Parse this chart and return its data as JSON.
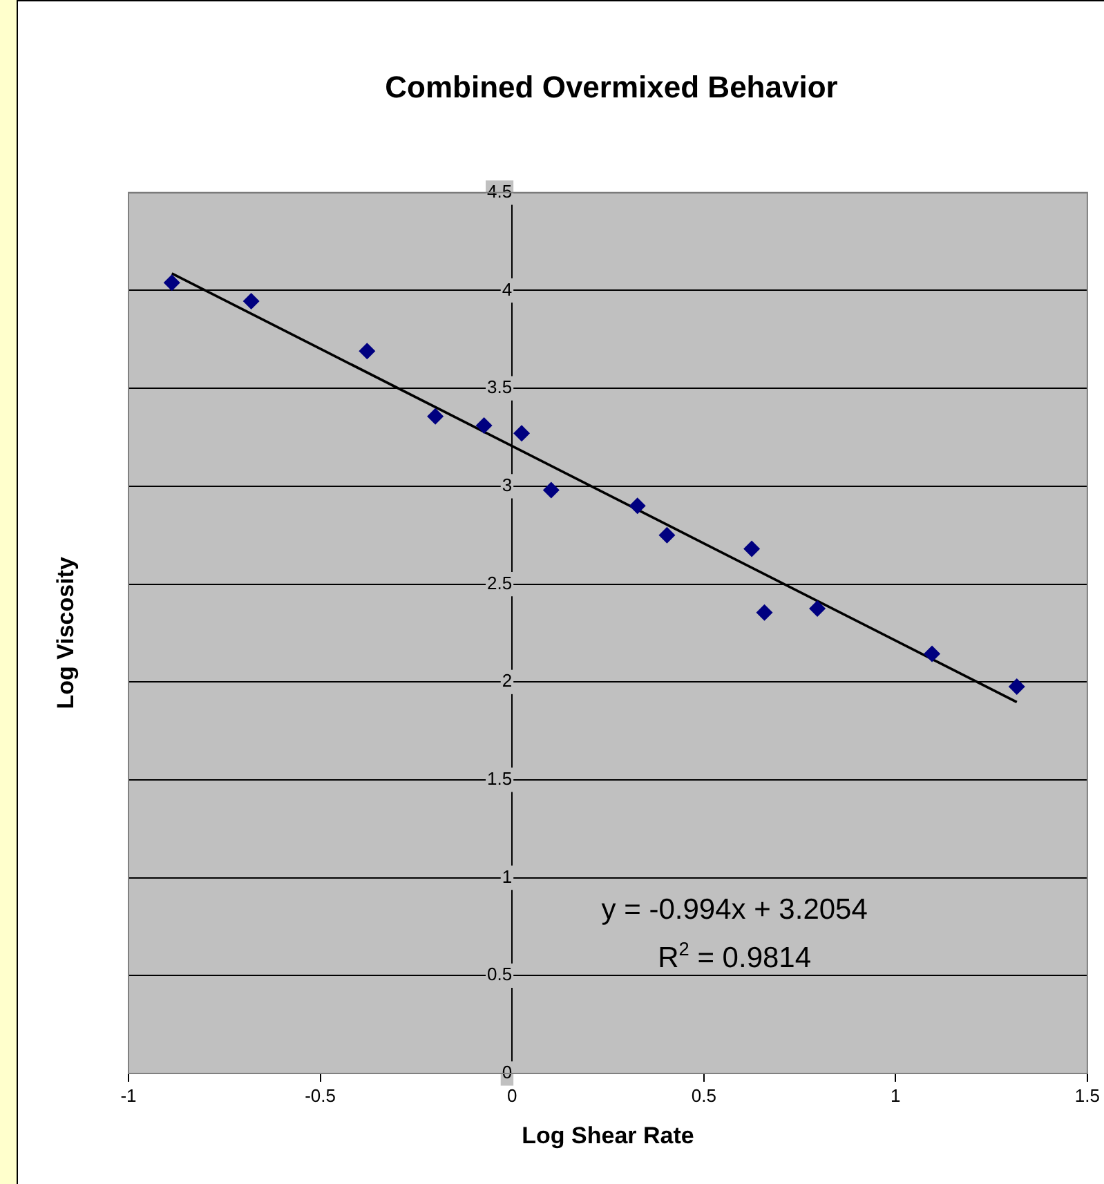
{
  "chart_data": {
    "type": "scatter",
    "title": "Combined Overmixed Behavior",
    "xlabel": "Log Shear Rate",
    "ylabel": "Log Viscosity",
    "x": [
      -0.887,
      -0.68,
      -0.378,
      -0.2,
      -0.073,
      0.025,
      0.102,
      0.327,
      0.404,
      0.625,
      0.658,
      0.796,
      1.095,
      1.316
    ],
    "series": [
      {
        "color": "#000080",
        "values": [
          4.04,
          3.945,
          3.69,
          3.357,
          3.31,
          3.27,
          2.98,
          2.9,
          2.75,
          2.68,
          2.355,
          2.375,
          2.144,
          1.976
        ]
      },
      {
        "type": "line",
        "marker": "none",
        "color": "#000000",
        "x": [
          -0.887,
          1.316
        ],
        "values": [
          4.087,
          1.897
        ]
      }
    ],
    "xlim": [
      -1,
      1.5
    ],
    "xticks": [
      -1,
      -0.5,
      0,
      0.5,
      1,
      1.5
    ],
    "ylim": [
      0,
      4.5
    ],
    "yticks": [
      0,
      0.5,
      1,
      1.5,
      2,
      2.5,
      3,
      3.5,
      4,
      4.5
    ],
    "grid": "y",
    "legend": false,
    "marker": "diamond",
    "annotations": [
      "y = -0.994x + 3.2054",
      "R$^{2}$ = 0.9814"
    ]
  }
}
